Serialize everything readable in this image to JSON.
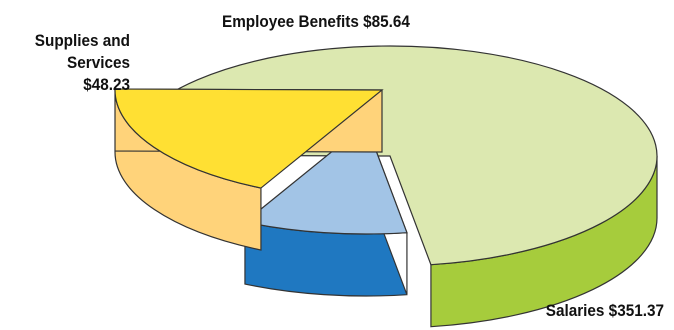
{
  "chart_data": {
    "type": "pie",
    "title": "",
    "slices": [
      {
        "label": "Salaries",
        "value": 351.37,
        "display": "Salaries $351.37",
        "color": "#dce8b0",
        "side_color": "#a6cc3c"
      },
      {
        "label": "Supplies and Services",
        "value": 48.23,
        "display_lines": [
          "Supplies and",
          "Services",
          "$48.23"
        ],
        "color": "#a2c4e6",
        "side_color": "#1f78c1"
      },
      {
        "label": "Employee Benefits",
        "value": 85.64,
        "display": "Employee Benefits $85.64",
        "color": "#ffe033",
        "side_color": "#ffd37a"
      }
    ],
    "style": "3d-exploded",
    "legend": "none"
  }
}
